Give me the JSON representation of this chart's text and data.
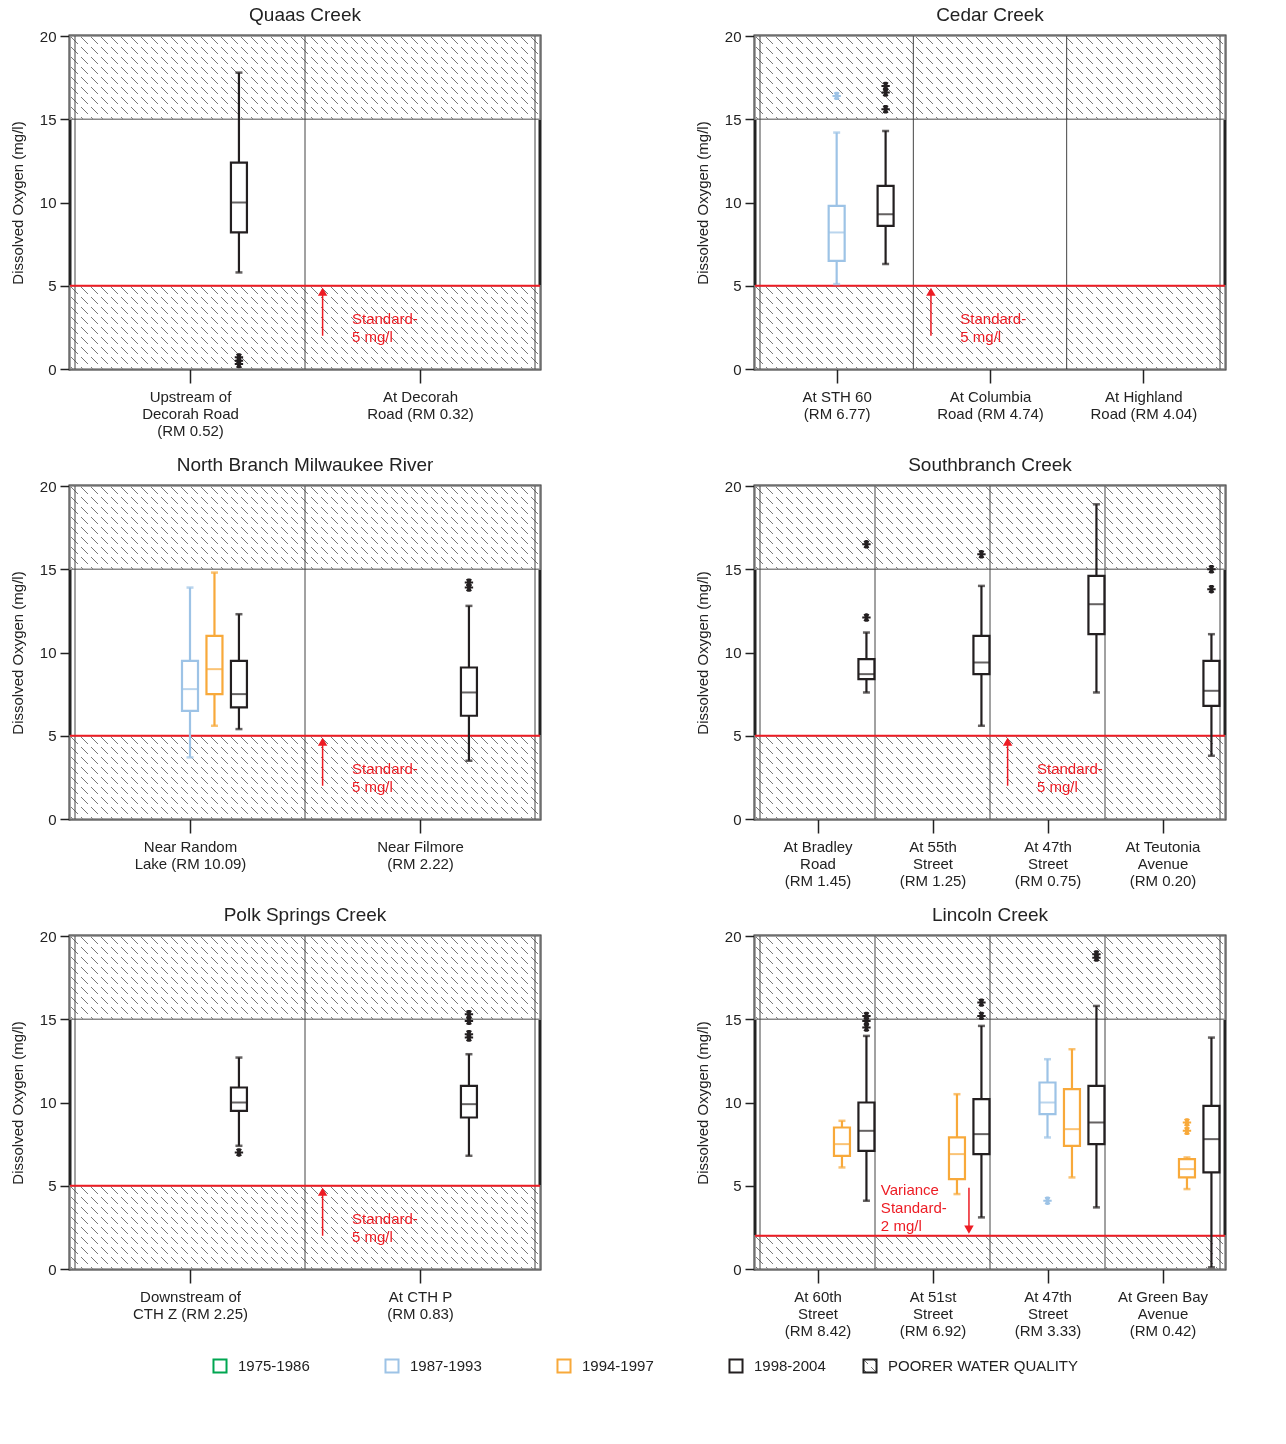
{
  "chart_data": [
    {
      "type": "box",
      "title": "Quaas Creek",
      "ylabel": "Dissolved Oxygen (mg/l)",
      "categories": [
        "Upstream of\nDecorah Road\n(RM 0.52)",
        "At Decorah\nRoad (RM 0.32)"
      ],
      "ylim": [
        0,
        20
      ],
      "yticks": [
        0,
        5,
        10,
        15,
        20
      ],
      "grid": "x",
      "legend": "bottom",
      "series": [
        {
          "name": "1998-2004",
          "color": "#231f20",
          "boxes": [
            {
              "low": 5.8,
              "q1": 8.2,
              "median": 10.0,
              "q3": 12.4,
              "high": 17.8,
              "outliers": [
                0.3,
                0.5,
                0.7
              ]
            },
            null
          ]
        }
      ],
      "ref_lines": [
        {
          "axis": "y",
          "value": 5,
          "label": "Standard-\n5 mg/l",
          "color": "#ed1c24"
        }
      ],
      "bands": [
        {
          "axis": "y",
          "from": 0,
          "to": 5,
          "label": "POORER WATER QUALITY"
        },
        {
          "axis": "y",
          "from": 15,
          "to": 20
        }
      ]
    },
    {
      "type": "box",
      "title": "Cedar Creek",
      "ylabel": "Dissolved Oxygen (mg/l)",
      "categories": [
        "At STH 60\n(RM 6.77)",
        "At Columbia\nRoad (RM 4.74)",
        "At Highland\nRoad (RM 4.04)"
      ],
      "ylim": [
        0,
        20
      ],
      "yticks": [
        0,
        5,
        10,
        15,
        20
      ],
      "grid": "x",
      "legend": "bottom",
      "series": [
        {
          "name": "1987-1993",
          "color": "#9dc3e6",
          "boxes": [
            {
              "low": 5.1,
              "q1": 6.5,
              "median": 8.2,
              "q3": 9.8,
              "high": 14.2,
              "outliers": [
                16.4
              ]
            },
            null,
            null
          ]
        },
        {
          "name": "1998-2004",
          "color": "#231f20",
          "boxes": [
            {
              "low": 6.3,
              "q1": 8.6,
              "median": 9.3,
              "q3": 11.0,
              "high": 14.3,
              "outliers": [
                15.6,
                16.6,
                17.0
              ]
            },
            null,
            null
          ]
        }
      ],
      "ref_lines": [
        {
          "axis": "y",
          "value": 5,
          "label": "Standard-\n5 mg/l",
          "color": "#ed1c24"
        }
      ],
      "bands": [
        {
          "axis": "y",
          "from": 0,
          "to": 5
        },
        {
          "axis": "y",
          "from": 15,
          "to": 20
        }
      ]
    },
    {
      "type": "box",
      "title": "North Branch Milwaukee River",
      "ylabel": "Dissolved Oxygen (mg/l)",
      "categories": [
        "Near Random\nLake (RM 10.09)",
        "Near Filmore\n(RM 2.22)"
      ],
      "ylim": [
        0,
        20
      ],
      "yticks": [
        0,
        5,
        10,
        15,
        20
      ],
      "grid": "x",
      "legend": "bottom",
      "series": [
        {
          "name": "1987-1993",
          "color": "#9dc3e6",
          "boxes": [
            {
              "low": 3.7,
              "q1": 6.5,
              "median": 7.8,
              "q3": 9.5,
              "high": 13.9
            },
            null
          ]
        },
        {
          "name": "1994-1997",
          "color": "#f8a93a",
          "boxes": [
            {
              "low": 5.6,
              "q1": 7.5,
              "median": 9.0,
              "q3": 11.0,
              "high": 14.8
            },
            null
          ]
        },
        {
          "name": "1998-2004",
          "color": "#231f20",
          "boxes": [
            {
              "low": 5.4,
              "q1": 6.7,
              "median": 7.5,
              "q3": 9.5,
              "high": 12.3
            },
            {
              "low": 3.5,
              "q1": 6.2,
              "median": 7.6,
              "q3": 9.1,
              "high": 12.8,
              "outliers": [
                13.9,
                14.2
              ]
            }
          ]
        }
      ],
      "ref_lines": [
        {
          "axis": "y",
          "value": 5,
          "label": "Standard-\n5 mg/l",
          "color": "#ed1c24"
        }
      ],
      "bands": [
        {
          "axis": "y",
          "from": 0,
          "to": 5
        },
        {
          "axis": "y",
          "from": 15,
          "to": 20
        }
      ]
    },
    {
      "type": "box",
      "title": "Southbranch Creek",
      "ylabel": "Dissolved Oxygen (mg/l)",
      "categories": [
        "At Bradley\nRoad\n(RM 1.45)",
        "At 55th\nStreet\n(RM 1.25)",
        "At 47th\nStreet\n(RM 0.75)",
        "At Teutonia\nAvenue\n(RM 0.20)"
      ],
      "ylim": [
        0,
        20
      ],
      "yticks": [
        0,
        5,
        10,
        15,
        20
      ],
      "grid": "x",
      "legend": "bottom",
      "series": [
        {
          "name": "1998-2004",
          "color": "#231f20",
          "boxes": [
            {
              "low": 7.6,
              "q1": 8.4,
              "median": 8.7,
              "q3": 9.6,
              "high": 11.2,
              "outliers": [
                12.1,
                16.5
              ]
            },
            {
              "low": 5.6,
              "q1": 8.7,
              "median": 9.4,
              "q3": 11.0,
              "high": 14.0,
              "outliers": [
                15.9
              ]
            },
            {
              "low": 7.6,
              "q1": 11.1,
              "median": 12.9,
              "q3": 14.6,
              "high": 18.9
            },
            {
              "low": 3.8,
              "q1": 6.8,
              "median": 7.7,
              "q3": 9.5,
              "high": 11.1,
              "outliers": [
                13.8,
                15.0
              ]
            }
          ]
        }
      ],
      "ref_lines": [
        {
          "axis": "y",
          "value": 5,
          "label": "Standard-\n5 mg/l",
          "color": "#ed1c24"
        }
      ],
      "bands": [
        {
          "axis": "y",
          "from": 0,
          "to": 5
        },
        {
          "axis": "y",
          "from": 15,
          "to": 20
        }
      ]
    },
    {
      "type": "box",
      "title": "Polk Springs Creek",
      "ylabel": "Dissolved Oxygen (mg/l)",
      "categories": [
        "Downstream of\nCTH Z (RM 2.25)",
        "At CTH P\n(RM 0.83)"
      ],
      "ylim": [
        0,
        20
      ],
      "yticks": [
        0,
        5,
        10,
        15,
        20
      ],
      "grid": "x",
      "legend": "bottom",
      "series": [
        {
          "name": "1998-2004",
          "color": "#231f20",
          "boxes": [
            {
              "low": 7.4,
              "q1": 9.5,
              "median": 10.0,
              "q3": 10.9,
              "high": 12.7,
              "outliers": [
                7.0
              ]
            },
            {
              "low": 6.8,
              "q1": 9.1,
              "median": 9.9,
              "q3": 11.0,
              "high": 12.9,
              "outliers": [
                13.9,
                14.1,
                14.9,
                15.3
              ]
            }
          ]
        }
      ],
      "ref_lines": [
        {
          "axis": "y",
          "value": 5,
          "label": "Standard-\n5 mg/l",
          "color": "#ed1c24"
        }
      ],
      "bands": [
        {
          "axis": "y",
          "from": 0,
          "to": 5
        },
        {
          "axis": "y",
          "from": 15,
          "to": 20
        }
      ]
    },
    {
      "type": "box",
      "title": "Lincoln Creek",
      "ylabel": "Dissolved Oxygen (mg/l)",
      "categories": [
        "At 60th\nStreet\n(RM 8.42)",
        "At 51st\nStreet\n(RM 6.92)",
        "At 47th\nStreet\n(RM 3.33)",
        "At Green Bay\nAvenue\n(RM 0.42)"
      ],
      "ylim": [
        0,
        20
      ],
      "yticks": [
        0,
        5,
        10,
        15,
        20
      ],
      "grid": "x",
      "legend": "bottom",
      "series": [
        {
          "name": "1975-1986",
          "color": "#00a651",
          "boxes": [
            null,
            null,
            null,
            null
          ]
        },
        {
          "name": "1987-1993",
          "color": "#9dc3e6",
          "boxes": [
            null,
            null,
            {
              "low": 7.9,
              "q1": 9.3,
              "median": 10.0,
              "q3": 11.2,
              "high": 12.6,
              "outliers": [
                4.1
              ]
            },
            null
          ]
        },
        {
          "name": "1994-1997",
          "color": "#f8a93a",
          "boxes": [
            {
              "low": 6.1,
              "q1": 6.8,
              "median": 7.5,
              "q3": 8.5,
              "high": 8.9
            },
            {
              "low": 4.5,
              "q1": 5.4,
              "median": 6.9,
              "q3": 7.9,
              "high": 10.5
            },
            {
              "low": 5.5,
              "q1": 7.4,
              "median": 8.4,
              "q3": 10.8,
              "high": 13.2
            },
            {
              "low": 4.8,
              "q1": 5.5,
              "median": 6.0,
              "q3": 6.6,
              "high": 6.7,
              "outliers": [
                8.3,
                8.8
              ]
            }
          ]
        },
        {
          "name": "1998-2004",
          "color": "#231f20",
          "boxes": [
            {
              "low": 4.1,
              "q1": 7.1,
              "median": 8.3,
              "q3": 10.0,
              "high": 14.0,
              "outliers": [
                14.5,
                14.9,
                15.2
              ]
            },
            {
              "low": 3.1,
              "q1": 6.9,
              "median": 8.1,
              "q3": 10.2,
              "high": 14.6,
              "outliers": [
                15.2,
                16.0
              ]
            },
            {
              "low": 3.7,
              "q1": 7.5,
              "median": 8.8,
              "q3": 11.0,
              "high": 15.8,
              "outliers": [
                18.7,
                18.9
              ]
            },
            {
              "low": 0.1,
              "q1": 5.8,
              "median": 7.8,
              "q3": 9.8,
              "high": 13.9
            }
          ]
        }
      ],
      "ref_lines": [
        {
          "axis": "y",
          "value": 2,
          "label": "Variance\nStandard-\n2 mg/l",
          "color": "#ed1c24"
        }
      ],
      "bands": [
        {
          "axis": "y",
          "from": 0,
          "to": 2
        },
        {
          "axis": "y",
          "from": 15,
          "to": 20
        }
      ]
    }
  ]
}
